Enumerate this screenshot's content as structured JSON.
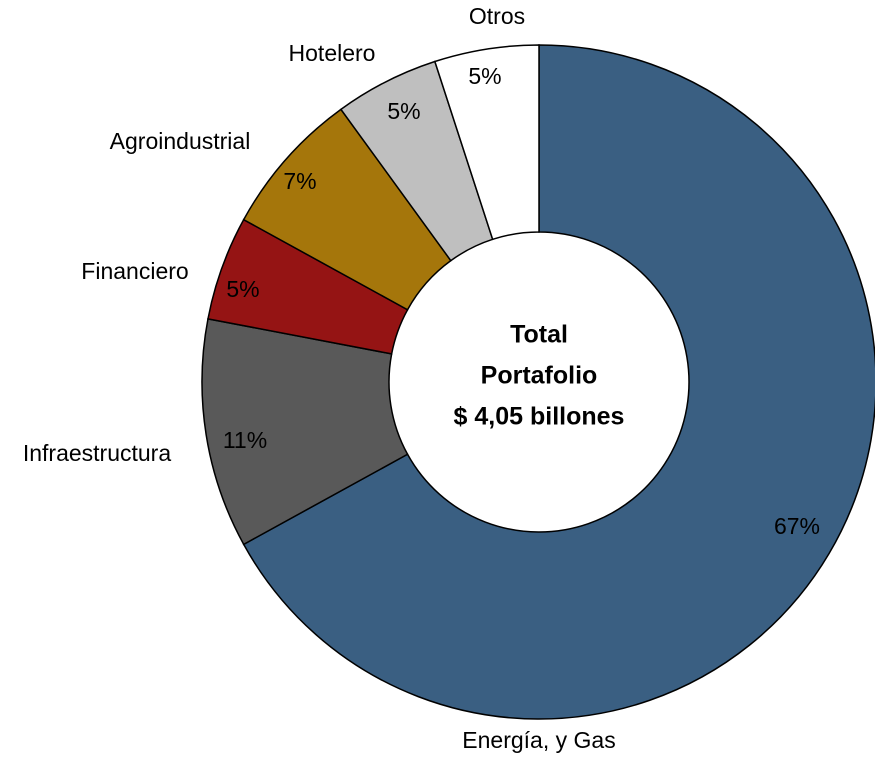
{
  "chart_data": {
    "type": "donut",
    "categories": [
      "Energía, y Gas",
      "Infraestructura",
      "Financiero",
      "Agroindustrial",
      "Hotelero",
      "Otros"
    ],
    "values": [
      67,
      11,
      5,
      7,
      5,
      5
    ],
    "value_labels": [
      "67%",
      "11%",
      "5%",
      "7%",
      "5%",
      "5%"
    ],
    "colors": [
      "#3a5f82",
      "#595959",
      "#951414",
      "#a5760b",
      "#bfbfbf",
      "#ffffff"
    ],
    "center_text": [
      "Total",
      "Portafolio",
      "$ 4,05 billones"
    ]
  }
}
